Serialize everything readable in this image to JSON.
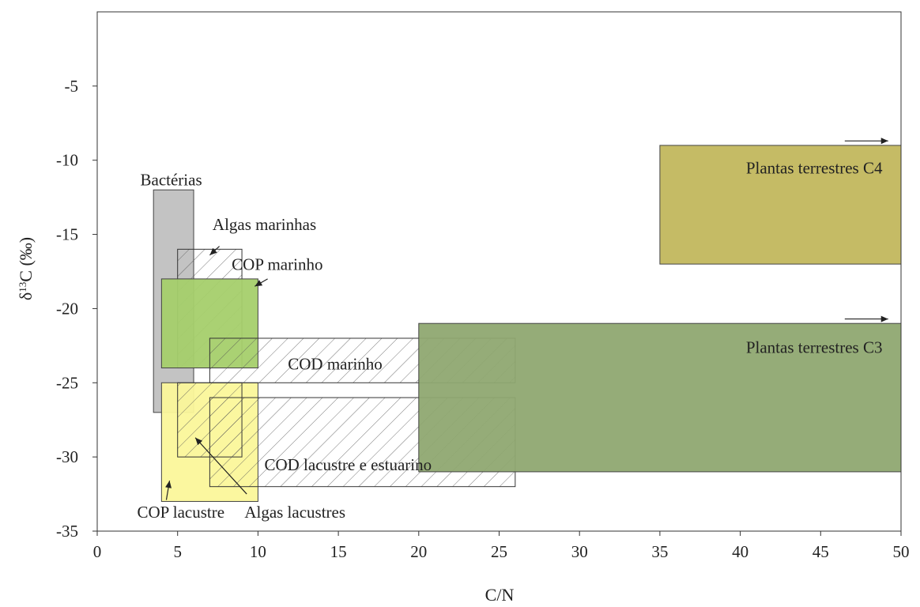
{
  "chart_data": {
    "type": "area",
    "title": "",
    "xlabel": "C/N",
    "ylabel": {
      "prefix": "δ",
      "sup": "13",
      "suffix": "C (‰)"
    },
    "xlim": [
      0,
      50
    ],
    "ylim": [
      -35,
      0
    ],
    "xticks": [
      0,
      5,
      10,
      15,
      20,
      25,
      30,
      35,
      40,
      45,
      50
    ],
    "yticks": [
      -5,
      -10,
      -15,
      -20,
      -25,
      -30,
      -35
    ],
    "grid": false,
    "regions": [
      {
        "name": "Bactérias",
        "x": [
          3.5,
          6
        ],
        "y": [
          -27,
          -12
        ],
        "color": "#c0c0c0",
        "hatch": false
      },
      {
        "name": "Algas marinhas",
        "x": [
          5,
          9
        ],
        "y": [
          -24,
          -16
        ],
        "color": "none",
        "hatch": true
      },
      {
        "name": "COP marinho",
        "x": [
          4,
          10
        ],
        "y": [
          -24,
          -18
        ],
        "color": "#a5cf6b",
        "hatch": false
      },
      {
        "name": "COP lacustre",
        "x": [
          4,
          10
        ],
        "y": [
          -33,
          -25
        ],
        "color": "#fbf79a",
        "hatch": false
      },
      {
        "name": "Algas lacustres",
        "x": [
          5,
          9
        ],
        "y": [
          -30,
          -25
        ],
        "color": "none",
        "hatch": true
      },
      {
        "name": "COD marinho",
        "x": [
          7,
          26
        ],
        "y": [
          -25,
          -22
        ],
        "color": "none",
        "hatch": true
      },
      {
        "name": "COD lacustre e estuarino",
        "x": [
          7,
          26
        ],
        "y": [
          -32,
          -26
        ],
        "color": "none",
        "hatch": true
      },
      {
        "name": "Plantas terrestres C3",
        "x": [
          20,
          50
        ],
        "y": [
          -31,
          -21
        ],
        "color": "#8fa871",
        "hatch": false
      },
      {
        "name": "Plantas terrestres C4",
        "x": [
          35,
          50
        ],
        "y": [
          -17,
          -9
        ],
        "color": "#c2b75d",
        "hatch": false
      }
    ],
    "annotations": [
      {
        "text": "Bactérias",
        "x": 4.6,
        "y": -11.7
      },
      {
        "text": "Algas marinhas",
        "x": 10.4,
        "y": -14.7
      },
      {
        "text": "COP marinho",
        "x": 11.2,
        "y": -17.4
      },
      {
        "text": "COD marinho",
        "x": 14.8,
        "y": -24.1
      },
      {
        "text": "COD lacustre e estuarino",
        "x": 15.6,
        "y": -30.9
      },
      {
        "text": "COP lacustre",
        "x": 5.2,
        "y": -34.1
      },
      {
        "text": "Algas lacustres",
        "x": 12.3,
        "y": -34.1
      },
      {
        "text": "Plantas terrestres C3",
        "x": 44.6,
        "y": -23.0
      },
      {
        "text": "Plantas terrestres C4",
        "x": 44.6,
        "y": -10.9
      }
    ]
  }
}
